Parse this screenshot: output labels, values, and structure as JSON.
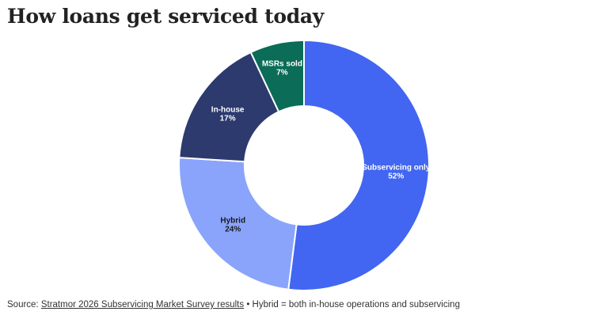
{
  "title": "How loans get serviced today",
  "chart_data": {
    "type": "pie",
    "donut": true,
    "title": "How loans get serviced today",
    "categories": [
      "Subservicing only",
      "Hybrid",
      "In-house",
      "MSRs sold"
    ],
    "values": [
      52,
      24,
      17,
      7
    ],
    "value_labels": [
      "52%",
      "24%",
      "17%",
      "7%"
    ],
    "colors": [
      "#4266f1",
      "#8aa4fb",
      "#2c3a6e",
      "#0b6c57"
    ],
    "label_colors": [
      "#ffffff",
      "#1a1a1a",
      "#ffffff",
      "#ffffff"
    ],
    "legend": "none"
  },
  "footer": {
    "prefix": "Source: ",
    "link_text": "Stratmor 2026 Subservicing Market Survey results",
    "note": " • Hybrid = both in-house operations and subservicing"
  }
}
